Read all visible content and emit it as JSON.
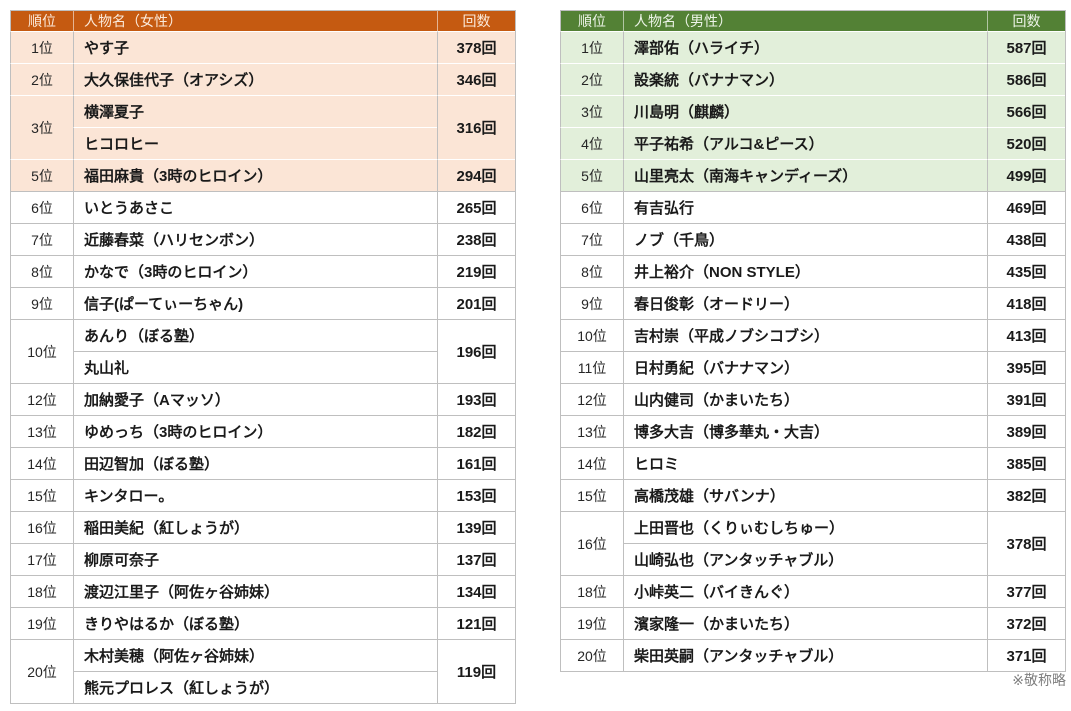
{
  "page": {
    "background": "#FFFFFF",
    "footnote": "※敬称略"
  },
  "women_table": {
    "colors": {
      "header_bg": "#C55A11",
      "header_fg": "#FBEADB",
      "highlight_bg": "#FBE5D6",
      "border": "#BFBFBF"
    },
    "header": {
      "rank": "順位",
      "name": "人物名（女性）",
      "count": "回数"
    },
    "rows": [
      {
        "rank": "1位",
        "names": [
          "やす子"
        ],
        "count": "378回",
        "highlight": true
      },
      {
        "rank": "2位",
        "names": [
          "大久保佳代子（オアシズ）"
        ],
        "count": "346回",
        "highlight": true
      },
      {
        "rank": "3位",
        "names": [
          "横澤夏子",
          "ヒコロヒー"
        ],
        "count": "316回",
        "highlight": true
      },
      {
        "rank": "5位",
        "names": [
          "福田麻貴（3時のヒロイン）"
        ],
        "count": "294回",
        "highlight": true
      },
      {
        "rank": "6位",
        "names": [
          "いとうあさこ"
        ],
        "count": "265回",
        "highlight": false
      },
      {
        "rank": "7位",
        "names": [
          "近藤春菜（ハリセンボン）"
        ],
        "count": "238回",
        "highlight": false
      },
      {
        "rank": "8位",
        "names": [
          "かなで（3時のヒロイン）"
        ],
        "count": "219回",
        "highlight": false
      },
      {
        "rank": "9位",
        "names": [
          "信子(ぱーてぃーちゃん)"
        ],
        "count": "201回",
        "highlight": false
      },
      {
        "rank": "10位",
        "names": [
          "あんり（ぼる塾）",
          "丸山礼"
        ],
        "count": "196回",
        "highlight": false
      },
      {
        "rank": "12位",
        "names": [
          "加納愛子（Aマッソ）"
        ],
        "count": "193回",
        "highlight": false
      },
      {
        "rank": "13位",
        "names": [
          "ゆめっち（3時のヒロイン）"
        ],
        "count": "182回",
        "highlight": false
      },
      {
        "rank": "14位",
        "names": [
          "田辺智加（ぼる塾）"
        ],
        "count": "161回",
        "highlight": false
      },
      {
        "rank": "15位",
        "names": [
          "キンタロー。"
        ],
        "count": "153回",
        "highlight": false
      },
      {
        "rank": "16位",
        "names": [
          "稲田美紀（紅しょうが）"
        ],
        "count": "139回",
        "highlight": false
      },
      {
        "rank": "17位",
        "names": [
          "柳原可奈子"
        ],
        "count": "137回",
        "highlight": false
      },
      {
        "rank": "18位",
        "names": [
          "渡辺江里子（阿佐ヶ谷姉妹）"
        ],
        "count": "134回",
        "highlight": false
      },
      {
        "rank": "19位",
        "names": [
          "きりやはるか（ぼる塾）"
        ],
        "count": "121回",
        "highlight": false
      },
      {
        "rank": "20位",
        "names": [
          "木村美穂（阿佐ヶ谷姉妹）",
          "熊元プロレス（紅しょうが）"
        ],
        "count": "119回",
        "highlight": false
      }
    ]
  },
  "men_table": {
    "colors": {
      "header_bg": "#538135",
      "header_fg": "#EDF4E8",
      "highlight_bg": "#E2EFDA",
      "border": "#BFBFBF"
    },
    "header": {
      "rank": "順位",
      "name": "人物名（男性）",
      "count": "回数"
    },
    "rows": [
      {
        "rank": "1位",
        "names": [
          "澤部佑（ハライチ）"
        ],
        "count": "587回",
        "highlight": true
      },
      {
        "rank": "2位",
        "names": [
          "設楽統（バナナマン）"
        ],
        "count": "586回",
        "highlight": true
      },
      {
        "rank": "3位",
        "names": [
          "川島明（麒麟）"
        ],
        "count": "566回",
        "highlight": true
      },
      {
        "rank": "4位",
        "names": [
          "平子祐希（アルコ&ピース）"
        ],
        "count": "520回",
        "highlight": true
      },
      {
        "rank": "5位",
        "names": [
          "山里亮太（南海キャンディーズ）"
        ],
        "count": "499回",
        "highlight": true
      },
      {
        "rank": "6位",
        "names": [
          "有吉弘行"
        ],
        "count": "469回",
        "highlight": false
      },
      {
        "rank": "7位",
        "names": [
          "ノブ（千鳥）"
        ],
        "count": "438回",
        "highlight": false
      },
      {
        "rank": "8位",
        "names": [
          "井上裕介（NON STYLE）"
        ],
        "count": "435回",
        "highlight": false
      },
      {
        "rank": "9位",
        "names": [
          "春日俊彰（オードリー）"
        ],
        "count": "418回",
        "highlight": false
      },
      {
        "rank": "10位",
        "names": [
          "吉村崇（平成ノブシコブシ）"
        ],
        "count": "413回",
        "highlight": false
      },
      {
        "rank": "11位",
        "names": [
          "日村勇紀（バナナマン）"
        ],
        "count": "395回",
        "highlight": false
      },
      {
        "rank": "12位",
        "names": [
          "山内健司（かまいたち）"
        ],
        "count": "391回",
        "highlight": false
      },
      {
        "rank": "13位",
        "names": [
          "博多大吉（博多華丸・大吉）"
        ],
        "count": "389回",
        "highlight": false
      },
      {
        "rank": "14位",
        "names": [
          "ヒロミ"
        ],
        "count": "385回",
        "highlight": false
      },
      {
        "rank": "15位",
        "names": [
          "高橋茂雄（サバンナ）"
        ],
        "count": "382回",
        "highlight": false
      },
      {
        "rank": "16位",
        "names": [
          "上田晋也（くりぃむしちゅー）",
          "山崎弘也（アンタッチャブル）"
        ],
        "count": "378回",
        "highlight": false
      },
      {
        "rank": "18位",
        "names": [
          "小峠英二（バイきんぐ）"
        ],
        "count": "377回",
        "highlight": false
      },
      {
        "rank": "19位",
        "names": [
          "濱家隆一（かまいたち）"
        ],
        "count": "372回",
        "highlight": false
      },
      {
        "rank": "20位",
        "names": [
          "柴田英嗣（アンタッチャブル）"
        ],
        "count": "371回",
        "highlight": false
      }
    ]
  },
  "chart_data": [
    {
      "type": "table",
      "title": "人物名（女性）",
      "columns": [
        "順位",
        "人物名（女性）",
        "回数"
      ],
      "rows": [
        [
          "1位",
          "やす子",
          378
        ],
        [
          "2位",
          "大久保佳代子（オアシズ）",
          346
        ],
        [
          "3位",
          "横澤夏子／ヒコロヒー",
          316
        ],
        [
          "5位",
          "福田麻貴（3時のヒロイン）",
          294
        ],
        [
          "6位",
          "いとうあさこ",
          265
        ],
        [
          "7位",
          "近藤春菜（ハリセンボン）",
          238
        ],
        [
          "8位",
          "かなで（3時のヒロイン）",
          219
        ],
        [
          "9位",
          "信子(ぱーてぃーちゃん)",
          201
        ],
        [
          "10位",
          "あんり（ぼる塾）／丸山礼",
          196
        ],
        [
          "12位",
          "加納愛子（Aマッソ）",
          193
        ],
        [
          "13位",
          "ゆめっち（3時のヒロイン）",
          182
        ],
        [
          "14位",
          "田辺智加（ぼる塾）",
          161
        ],
        [
          "15位",
          "キンタロー。",
          153
        ],
        [
          "16位",
          "稲田美紀（紅しょうが）",
          139
        ],
        [
          "17位",
          "柳原可奈子",
          137
        ],
        [
          "18位",
          "渡辺江里子（阿佐ヶ谷姉妹）",
          134
        ],
        [
          "19位",
          "きりやはるか（ぼる塾）",
          121
        ],
        [
          "20位",
          "木村美穂（阿佐ヶ谷姉妹）／熊元プロレス（紅しょうが）",
          119
        ]
      ]
    },
    {
      "type": "table",
      "title": "人物名（男性）",
      "columns": [
        "順位",
        "人物名（男性）",
        "回数"
      ],
      "rows": [
        [
          "1位",
          "澤部佑（ハライチ）",
          587
        ],
        [
          "2位",
          "設楽統（バナナマン）",
          586
        ],
        [
          "3位",
          "川島明（麒麟）",
          566
        ],
        [
          "4位",
          "平子祐希（アルコ&ピース）",
          520
        ],
        [
          "5位",
          "山里亮太（南海キャンディーズ）",
          499
        ],
        [
          "6位",
          "有吉弘行",
          469
        ],
        [
          "7位",
          "ノブ（千鳥）",
          438
        ],
        [
          "8位",
          "井上裕介（NON STYLE）",
          435
        ],
        [
          "9位",
          "春日俊彰（オードリー）",
          418
        ],
        [
          "10位",
          "吉村崇（平成ノブシコブシ）",
          413
        ],
        [
          "11位",
          "日村勇紀（バナナマン）",
          395
        ],
        [
          "12位",
          "山内健司（かまいたち）",
          391
        ],
        [
          "13位",
          "博多大吉（博多華丸・大吉）",
          389
        ],
        [
          "14位",
          "ヒロミ",
          385
        ],
        [
          "15位",
          "高橋茂雄（サバンナ）",
          382
        ],
        [
          "16位",
          "上田晋也（くりぃむしちゅー）／山崎弘也（アンタッチャブル）",
          378
        ],
        [
          "18位",
          "小峠英二（バイきんぐ）",
          377
        ],
        [
          "19位",
          "濱家隆一（かまいたち）",
          372
        ],
        [
          "20位",
          "柴田英嗣（アンタッチャブル）",
          371
        ]
      ]
    }
  ]
}
